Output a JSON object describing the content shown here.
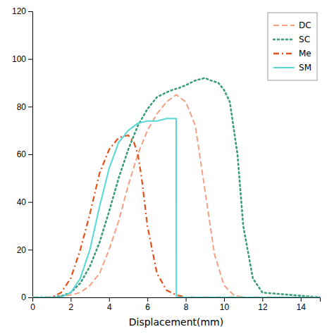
{
  "chart_data": {
    "type": "line",
    "x_label": "Displacement(mm)",
    "xlim": [
      0,
      15
    ],
    "ylim": [
      0,
      120
    ],
    "xticks": [
      0,
      2,
      4,
      6,
      8,
      10,
      12,
      14
    ],
    "yticks": [
      0,
      20,
      40,
      60,
      80,
      100,
      120
    ],
    "legend": "upper right",
    "series": [
      {
        "name": "DC",
        "color": "#F4A080",
        "line_style": "dashed",
        "x": [
          0,
          0.5,
          1.0,
          1.5,
          2.0,
          2.5,
          3.0,
          3.5,
          4.0,
          4.5,
          5.0,
          5.5,
          6.0,
          6.5,
          7.0,
          7.5,
          8.0,
          8.5,
          9.0,
          9.5,
          10.0,
          10.5,
          11.0,
          15.0
        ],
        "values": [
          0,
          0,
          0,
          0.5,
          1,
          2,
          5,
          10,
          20,
          32,
          47,
          60,
          70,
          77,
          82,
          85,
          82,
          72,
          45,
          18,
          5,
          1,
          0,
          0
        ]
      },
      {
        "name": "SC",
        "color": "#3A9C78",
        "line_style": "dotted",
        "x": [
          0,
          1.0,
          1.5,
          2.0,
          2.5,
          3.0,
          3.5,
          4.0,
          4.5,
          5.0,
          5.5,
          6.0,
          6.5,
          7.0,
          7.3,
          7.7,
          8.0,
          8.5,
          9.0,
          9.3,
          9.7,
          10.0,
          10.3,
          10.7,
          11.0,
          11.5,
          12.0,
          15.0
        ],
        "values": [
          0,
          0,
          0.5,
          2,
          6,
          13,
          23,
          36,
          50,
          62,
          72,
          79,
          84,
          86,
          87,
          88,
          89,
          91,
          92,
          91,
          90,
          87,
          82,
          60,
          30,
          8,
          2,
          0
        ]
      },
      {
        "name": "Me",
        "color": "#E05520",
        "line_style": "dashdot",
        "x": [
          0,
          0.5,
          1.0,
          1.5,
          2.0,
          2.5,
          3.0,
          3.5,
          4.0,
          4.5,
          5.0,
          5.3,
          5.5,
          5.7,
          6.0,
          6.5,
          7.0,
          7.5,
          8.0,
          15.0
        ],
        "values": [
          0,
          0,
          0,
          2,
          8,
          20,
          35,
          52,
          62,
          67,
          68,
          65,
          60,
          50,
          30,
          10,
          3,
          1,
          0,
          0
        ]
      },
      {
        "name": "SM",
        "color": "#55D8D8",
        "line_style": "solid",
        "x": [
          0,
          1.0,
          1.5,
          2.0,
          2.5,
          3.0,
          3.5,
          4.0,
          4.5,
          5.0,
          5.5,
          6.0,
          6.5,
          7.0,
          7.5,
          7.51,
          8.0,
          15.0
        ],
        "values": [
          0,
          0,
          0,
          2,
          8,
          20,
          38,
          54,
          65,
          70,
          73,
          74,
          74,
          75,
          75,
          0,
          0,
          0
        ]
      }
    ]
  }
}
